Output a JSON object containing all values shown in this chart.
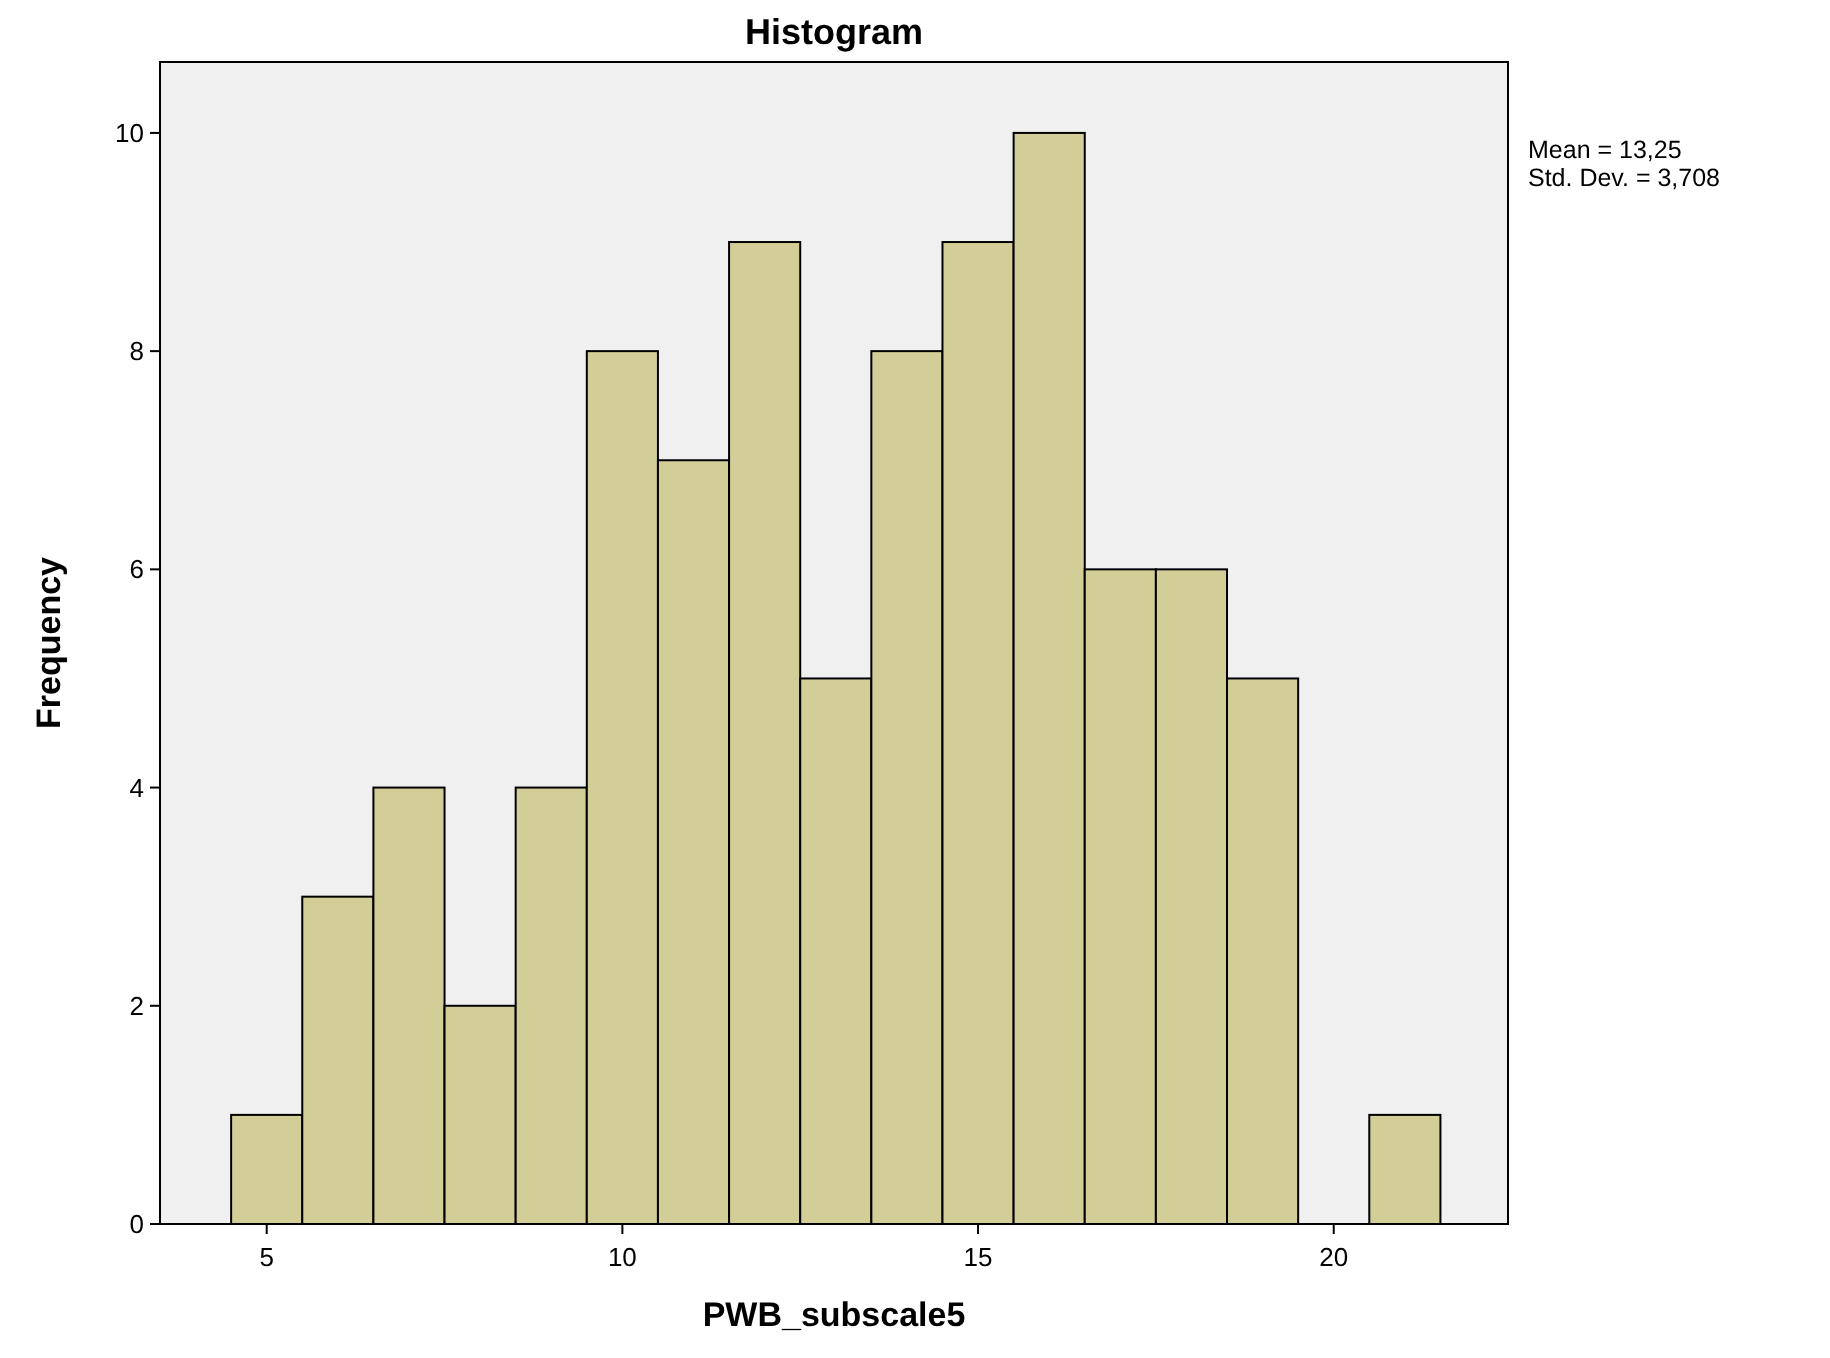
{
  "chart_data": {
    "type": "histogram",
    "title": "Histogram",
    "xlabel": "PWB_subscale5",
    "ylabel": "Frequency",
    "bins": [
      4.5,
      5.5,
      6.5,
      7.5,
      8.5,
      9.5,
      10.5,
      11.5,
      12.5,
      13.5,
      14.5,
      15.5,
      16.5,
      17.5,
      18.5,
      19.5,
      20.5,
      21.5
    ],
    "values": [
      1,
      3,
      4,
      2,
      4,
      8,
      7,
      9,
      5,
      8,
      9,
      10,
      6,
      6,
      5,
      0,
      1
    ],
    "color": "#d3ce97",
    "xlim": [
      3.5,
      22.45
    ],
    "ylim": [
      0,
      10.65
    ],
    "xticks": [
      5,
      10,
      15,
      20
    ],
    "yticks": [
      0,
      2,
      4,
      6,
      8,
      10
    ],
    "grid": false,
    "annotations": [
      "Mean = 13,25",
      "Std. Dev. = 3,708"
    ]
  }
}
